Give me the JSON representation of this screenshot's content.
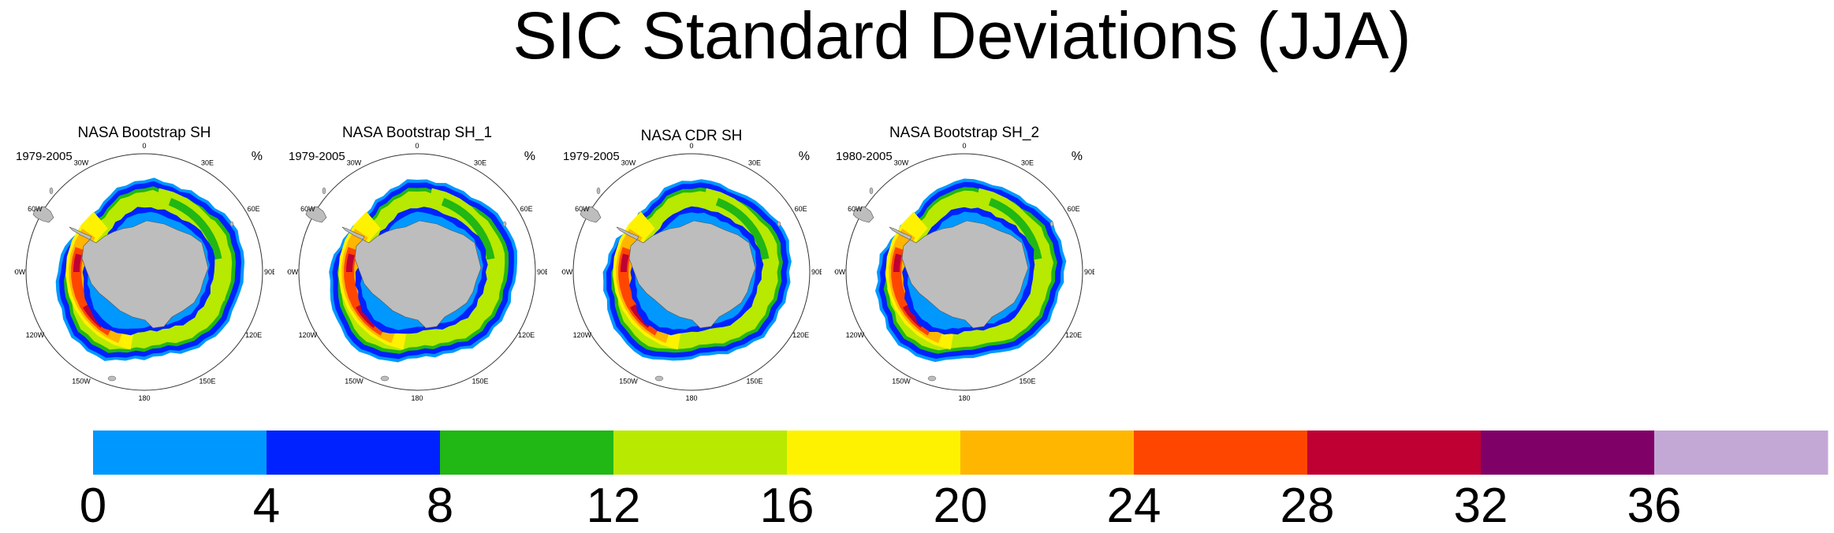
{
  "title": "SIC Standard Deviations (JJA)",
  "panels": [
    {
      "title": "NASA Bootstrap SH",
      "period": "1979-2005",
      "unit": "%"
    },
    {
      "title": "NASA Bootstrap SH_1",
      "period": "1979-2005",
      "unit": "%"
    },
    {
      "title": "NASA CDR SH",
      "period": "1979-2005",
      "unit": "%"
    },
    {
      "title": "NASA Bootstrap SH_2",
      "period": "1980-2005",
      "unit": "%"
    }
  ],
  "longitude_labels": [
    "0",
    "30E",
    "60E",
    "90E",
    "120E",
    "150E",
    "180",
    "150W",
    "120W",
    "90W",
    "60W",
    "30W"
  ],
  "colorbar": {
    "unit": "%",
    "levels": [
      0,
      4,
      8,
      12,
      16,
      20,
      24,
      28,
      32,
      36
    ],
    "tick_labels": [
      "0",
      "4",
      "8",
      "12",
      "16",
      "20",
      "24",
      "28",
      "32",
      "36"
    ],
    "colors": [
      "#0098ff",
      "#0022ff",
      "#21b714",
      "#b8e900",
      "#fff200",
      "#ffb600",
      "#ff4600",
      "#bf0033",
      "#7f0066",
      "#c3a8d6"
    ]
  },
  "map_colors": {
    "land": "#bdbdbd",
    "ocean": "#ffffff",
    "coastline": "#555555"
  }
}
